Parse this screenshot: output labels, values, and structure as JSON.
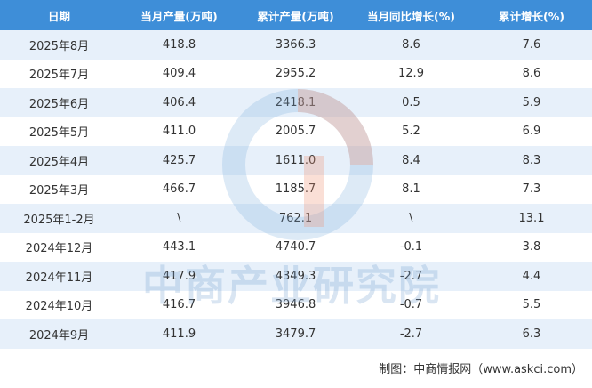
{
  "table": {
    "header": [
      "日期",
      "当月产量(万吨)",
      "累计产量(万吨)",
      "当月同比增长(%)",
      "累计增长(%)"
    ],
    "rows": [
      [
        "2025年8月",
        "418.8",
        "3366.3",
        "8.6",
        "7.6"
      ],
      [
        "2025年7月",
        "409.4",
        "2955.2",
        "12.9",
        "8.6"
      ],
      [
        "2025年6月",
        "406.4",
        "2418.1",
        "0.5",
        "5.9"
      ],
      [
        "2025年5月",
        "411.0",
        "2005.7",
        "5.2",
        "6.9"
      ],
      [
        "2025年4月",
        "425.7",
        "1611.0",
        "8.4",
        "8.3"
      ],
      [
        "2025年3月",
        "466.7",
        "1185.7",
        "8.1",
        "7.3"
      ],
      [
        "2025年1-2月",
        "\\",
        "762.1",
        "\\",
        "13.1"
      ],
      [
        "2024年12月",
        "443.1",
        "4740.7",
        "-0.1",
        "3.8"
      ],
      [
        "2024年11月",
        "417.9",
        "4349.3",
        "-2.7",
        "4.4"
      ],
      [
        "2024年10月",
        "416.7",
        "3946.8",
        "-0.7",
        "5.5"
      ],
      [
        "2024年9月",
        "411.9",
        "3479.7",
        "-2.7",
        "6.3"
      ]
    ]
  },
  "watermark": "中商产业研究院",
  "footer": "制图：中商情报网（www.askci.com）"
}
